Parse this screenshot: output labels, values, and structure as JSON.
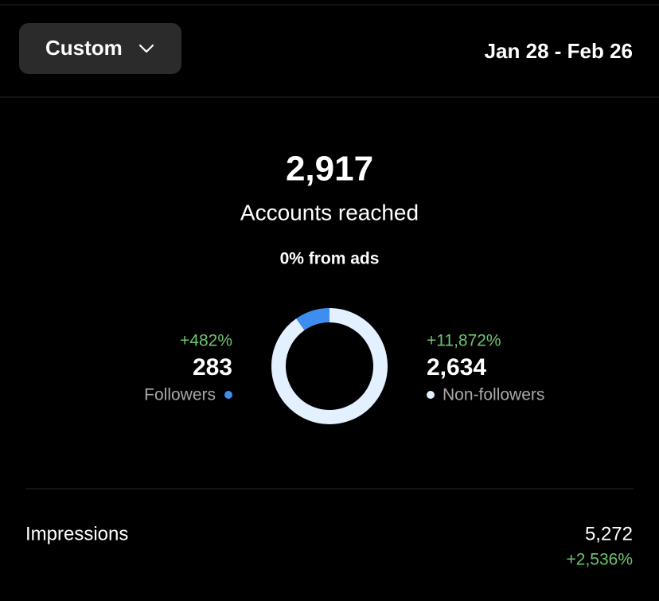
{
  "header": {
    "filter_button": "Custom",
    "date_range": "Jan 28 - Feb 26"
  },
  "summary": {
    "accounts_reached": "2,917",
    "accounts_reached_label": "Accounts reached",
    "ads_note": "0% from ads"
  },
  "followers": {
    "change": "+482%",
    "count": {
      "value": 283,
      "label": "283"
    },
    "label": "Followers",
    "color": "#3d8ef0"
  },
  "non_followers": {
    "change": "+11,872%",
    "count": {
      "value": 2634,
      "label": "2,634"
    },
    "label": "Non-followers",
    "color": "#e2f0ff"
  },
  "impressions": {
    "label": "Impressions",
    "value": "5,272",
    "change": "+2,536%"
  }
}
